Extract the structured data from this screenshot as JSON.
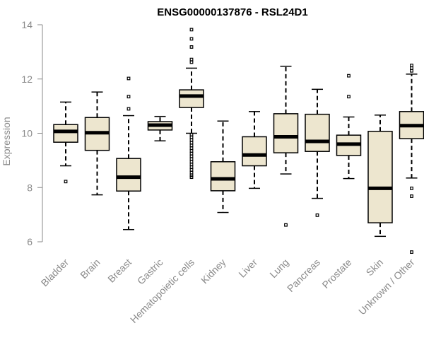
{
  "chart_data": {
    "type": "box",
    "title": "ENSG00000137876 - RSL24D1",
    "xlabel": "",
    "ylabel": "Expression",
    "ylim": [
      5.5,
      14
    ],
    "yticks": [
      "6",
      "8",
      "10",
      "12",
      "14"
    ],
    "grid": false,
    "categories": [
      "Bladder",
      "Brain",
      "Breast",
      "Gastric",
      "Hematopoietic cells",
      "Kidney",
      "Liver",
      "Lung",
      "Pancreas",
      "Prostate",
      "Skin",
      "Unknown / Other"
    ],
    "colors": {
      "box_fill": "#ede6cf",
      "box_stroke": "#000000",
      "axis": "#8a8a8a"
    },
    "boxes": [
      {
        "category": "Bladder",
        "lower_whisker": 8.8,
        "q1": 9.67,
        "median": 10.07,
        "q3": 10.32,
        "upper_whisker": 11.15,
        "outliers": [
          8.22
        ]
      },
      {
        "category": "Brain",
        "lower_whisker": 7.73,
        "q1": 9.37,
        "median": 10.02,
        "q3": 10.58,
        "upper_whisker": 11.52,
        "outliers": []
      },
      {
        "category": "Breast",
        "lower_whisker": 6.45,
        "q1": 7.87,
        "median": 8.38,
        "q3": 9.07,
        "upper_whisker": 10.65,
        "outliers": [
          10.9,
          11.35,
          12.02
        ]
      },
      {
        "category": "Gastric",
        "lower_whisker": 9.72,
        "q1": 10.12,
        "median": 10.3,
        "q3": 10.43,
        "upper_whisker": 10.62,
        "outliers": []
      },
      {
        "category": "Hematopoietic cells",
        "lower_whisker": 10.0,
        "q1": 10.95,
        "median": 11.37,
        "q3": 11.6,
        "upper_whisker": 12.4,
        "outliers": [
          12.62,
          12.72,
          13.18,
          13.48,
          13.82,
          9.95,
          9.85,
          9.75,
          9.65,
          9.55,
          9.45,
          9.35,
          9.25,
          9.15,
          9.05,
          8.95,
          8.85,
          8.75,
          8.65,
          8.55,
          8.45,
          8.38
        ]
      },
      {
        "category": "Kidney",
        "lower_whisker": 7.08,
        "q1": 7.88,
        "median": 8.32,
        "q3": 8.95,
        "upper_whisker": 10.45,
        "outliers": []
      },
      {
        "category": "Liver",
        "lower_whisker": 7.97,
        "q1": 8.8,
        "median": 9.2,
        "q3": 9.87,
        "upper_whisker": 10.8,
        "outliers": []
      },
      {
        "category": "Lung",
        "lower_whisker": 8.5,
        "q1": 9.28,
        "median": 9.87,
        "q3": 10.72,
        "upper_whisker": 12.47,
        "outliers": [
          6.62
        ]
      },
      {
        "category": "Pancreas",
        "lower_whisker": 7.6,
        "q1": 9.33,
        "median": 9.7,
        "q3": 10.7,
        "upper_whisker": 11.62,
        "outliers": [
          6.98
        ]
      },
      {
        "category": "Prostate",
        "lower_whisker": 8.33,
        "q1": 9.18,
        "median": 9.6,
        "q3": 9.93,
        "upper_whisker": 10.6,
        "outliers": [
          11.35,
          12.12
        ]
      },
      {
        "category": "Skin",
        "lower_whisker": 6.2,
        "q1": 6.7,
        "median": 7.97,
        "q3": 10.07,
        "upper_whisker": 10.67,
        "outliers": []
      },
      {
        "category": "Unknown / Other",
        "lower_whisker": 8.35,
        "q1": 9.8,
        "median": 10.28,
        "q3": 10.8,
        "upper_whisker": 12.18,
        "outliers": [
          12.3,
          12.4,
          12.5,
          7.97,
          7.68,
          5.62
        ]
      }
    ]
  }
}
